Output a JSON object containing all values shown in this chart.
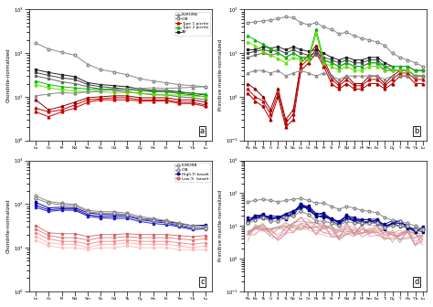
{
  "ree_labels": [
    "La",
    "Ce",
    "Pr",
    "Nd",
    "Sm",
    "Eu",
    "Gd",
    "Tb",
    "Dy",
    "Ho",
    "Er",
    "Tm",
    "Yb",
    "Lu"
  ],
  "trace_labels": [
    "Rb",
    "Ba",
    "Th",
    "U",
    "K",
    "Ta",
    "Nb",
    "La",
    "Ce",
    "Pb",
    "Pr",
    "Sr",
    "P",
    "Nd",
    "Zr",
    "Hf",
    "Sm",
    "Eu",
    "Ti",
    "Dy",
    "Y",
    "Ho",
    "Yb",
    "Lu"
  ],
  "panel_a": {
    "ylabel": "Chondrite-normalized",
    "ylim": [
      1,
      1000
    ],
    "series": {
      "N-MORB": {
        "color": "#888888",
        "marker": "^",
        "mfc": "white",
        "lw": 0.8,
        "values": [
          10.5,
          11.5,
          12.5,
          12.0,
          13.0,
          14.0,
          14.5,
          15.0,
          15.5,
          16.0,
          15.5,
          16.0,
          16.5,
          17.0
        ]
      },
      "OIB": {
        "color": "#888888",
        "marker": "o",
        "mfc": "white",
        "lw": 0.8,
        "values": [
          170,
          125,
          105,
          90,
          55,
          42,
          37,
          32,
          26,
          23,
          21,
          19,
          18,
          17
        ]
      },
      "Type1_1": {
        "color": "#8B0000",
        "marker": "^",
        "mfc": "#8B0000",
        "lw": 0.8,
        "values": [
          8.5,
          5.0,
          6.0,
          7.5,
          9.5,
          10.0,
          10.5,
          10.5,
          9.5,
          9.5,
          9.5,
          8.5,
          8.5,
          7.5
        ]
      },
      "Type1_2": {
        "color": "#CC0000",
        "marker": "^",
        "mfc": "#CC0000",
        "lw": 0.8,
        "values": [
          5.5,
          4.5,
          5.0,
          6.5,
          8.5,
          9.0,
          9.5,
          9.5,
          8.5,
          8.5,
          8.5,
          7.5,
          7.5,
          6.5
        ]
      },
      "Type1_3": {
        "color": "#CC0000",
        "marker": "^",
        "mfc": "#CC0000",
        "lw": 0.8,
        "values": [
          4.5,
          3.5,
          4.5,
          5.5,
          7.5,
          8.5,
          8.5,
          8.5,
          8.0,
          8.0,
          8.0,
          7.0,
          7.0,
          6.0
        ]
      },
      "Type2_1": {
        "color": "#00BB00",
        "marker": "^",
        "mfc": "#00BB00",
        "lw": 0.8,
        "values": [
          23,
          19,
          17,
          16,
          15,
          15,
          15,
          14.5,
          14,
          13.5,
          13,
          12.5,
          12,
          11.5
        ]
      },
      "Type2_2": {
        "color": "#66DD00",
        "marker": "^",
        "mfc": "#66DD00",
        "lw": 0.8,
        "values": [
          19,
          16,
          14.5,
          13.5,
          13,
          13,
          12.5,
          12.5,
          12,
          11.5,
          11,
          11,
          10.5,
          10
        ]
      },
      "AP_1": {
        "color": "#222222",
        "marker": "s",
        "mfc": "#222222",
        "lw": 0.8,
        "values": [
          42,
          36,
          32,
          29,
          21,
          19,
          18,
          17,
          15,
          14,
          14,
          13,
          12,
          11
        ]
      },
      "AP_2": {
        "color": "#444444",
        "marker": "s",
        "mfc": "#444444",
        "lw": 0.8,
        "values": [
          36,
          31,
          27,
          25,
          19,
          17,
          16,
          15,
          14,
          13,
          13,
          12,
          11,
          10
        ]
      },
      "AP_3": {
        "color": "#666666",
        "marker": "s",
        "mfc": "#666666",
        "lw": 0.8,
        "values": [
          30,
          26,
          22,
          20,
          17,
          15,
          14,
          13,
          12,
          11,
          11,
          10,
          9.5,
          8.5
        ]
      }
    },
    "legend_order": [
      "N-MORB",
      "OIB",
      "Type1_1",
      "Type2_1",
      "AP_1"
    ],
    "legend_labels": [
      "N-MORB",
      "OIB",
      "Type 1 picrite",
      "Type 2 picrite",
      "AP"
    ],
    "legend_colors": [
      "#888888",
      "#888888",
      "#CC0000",
      "#00BB00",
      "#222222"
    ],
    "legend_markers": [
      "^",
      "o",
      "^",
      "^",
      "s"
    ],
    "legend_mfcs": [
      "white",
      "white",
      "#CC0000",
      "#00BB00",
      "#222222"
    ]
  },
  "panel_b": {
    "ylabel": "Primitive mantle-normalized",
    "ylim": [
      0.1,
      100
    ],
    "series": {
      "OIB": {
        "color": "#888888",
        "marker": "o",
        "mfc": "white",
        "lw": 0.8,
        "values": [
          50,
          52,
          55,
          58,
          62,
          68,
          65,
          50,
          45,
          50,
          40,
          35,
          28,
          30,
          25,
          22,
          20,
          18,
          15,
          10,
          8,
          7,
          6,
          5
        ]
      },
      "N-MORB": {
        "color": "#888888",
        "marker": "^",
        "mfc": "white",
        "lw": 0.8,
        "values": [
          3.5,
          4,
          4,
          3.5,
          4,
          3,
          3.5,
          4,
          3.5,
          3,
          3.5,
          3,
          2.5,
          3,
          3,
          3,
          3,
          3,
          2.5,
          3,
          3,
          3,
          3,
          3
        ]
      },
      "Type1_1": {
        "color": "#8B0000",
        "marker": "^",
        "mfc": "#8B0000",
        "lw": 0.8,
        "values": [
          2.0,
          1.5,
          1.0,
          0.5,
          1.5,
          0.3,
          0.5,
          6,
          9,
          15,
          7,
          3,
          2,
          3,
          2,
          2,
          3,
          3,
          2,
          3,
          4,
          4,
          3,
          3
        ]
      },
      "Type1_2": {
        "color": "#CC0000",
        "marker": "^",
        "mfc": "#CC0000",
        "lw": 0.8,
        "values": [
          1.5,
          1.0,
          0.8,
          0.4,
          1.2,
          0.25,
          0.4,
          5,
          7.5,
          12,
          6,
          2.5,
          1.8,
          2.5,
          1.8,
          1.8,
          2.5,
          2.5,
          1.8,
          2.5,
          3.5,
          3.5,
          2.5,
          2.5
        ]
      },
      "Type1_3": {
        "color": "#AA0000",
        "marker": "^",
        "mfc": "#AA0000",
        "lw": 0.8,
        "values": [
          1.2,
          0.8,
          0.6,
          0.3,
          1.0,
          0.2,
          0.3,
          4,
          6,
          10,
          5,
          2,
          1.5,
          2,
          1.5,
          1.5,
          2,
          2,
          1.5,
          2,
          3,
          3,
          2,
          2
        ]
      },
      "Type2_1": {
        "color": "#00BB00",
        "marker": "^",
        "mfc": "#00BB00",
        "lw": 0.8,
        "values": [
          25,
          20,
          16,
          13,
          10,
          8,
          10,
          8,
          8,
          35,
          7,
          6,
          5,
          6,
          5,
          5,
          6,
          6,
          5,
          5,
          5,
          5,
          4,
          4
        ]
      },
      "Type2_2": {
        "color": "#66DD00",
        "marker": "^",
        "mfc": "#66DD00",
        "lw": 0.8,
        "values": [
          18,
          15,
          11,
          9,
          7.5,
          6,
          8,
          7,
          7,
          28,
          6,
          5,
          4,
          5,
          4,
          4,
          5,
          5,
          4,
          4,
          4,
          4,
          3,
          3
        ]
      },
      "AP_1": {
        "color": "#222222",
        "marker": "s",
        "mfc": "#222222",
        "lw": 0.8,
        "values": [
          12,
          12,
          14,
          13,
          14,
          12,
          14,
          12,
          11,
          12,
          10,
          8,
          7,
          8,
          7,
          7,
          8,
          8,
          6,
          5,
          5,
          5,
          4,
          4
        ]
      },
      "AP_2": {
        "color": "#444444",
        "marker": "s",
        "mfc": "#444444",
        "lw": 0.8,
        "values": [
          10,
          11,
          12,
          11,
          12,
          10,
          12,
          10,
          9,
          10,
          8,
          7,
          6,
          7,
          6,
          6,
          7,
          7,
          5,
          4,
          4,
          4,
          3,
          3
        ]
      },
      "AP_3": {
        "color": "#666666",
        "marker": "s",
        "mfc": "#666666",
        "lw": 0.8,
        "values": [
          8,
          9,
          10,
          9,
          10,
          8,
          10,
          8,
          8,
          9,
          7,
          6,
          5,
          6,
          5,
          5,
          6,
          6,
          4,
          4,
          4,
          4,
          3,
          3
        ]
      }
    }
  },
  "panel_c": {
    "ylabel": "Chondrite-normalized",
    "ylim": [
      1,
      1000
    ],
    "series": {
      "E-MORB": {
        "color": "#888888",
        "marker": "o",
        "mfc": "white",
        "lw": 0.8,
        "values": [
          155,
          115,
          105,
          98,
          72,
          67,
          67,
          62,
          52,
          47,
          42,
          37,
          32,
          31
        ]
      },
      "OIB": {
        "color": "#888888",
        "marker": "D",
        "mfc": "white",
        "lw": 0.8,
        "values": [
          135,
          105,
          97,
          92,
          67,
          62,
          62,
          57,
          47,
          42,
          38,
          34,
          29,
          28
        ]
      },
      "HighTi_1": {
        "color": "#00008B",
        "marker": "s",
        "mfc": "#00008B",
        "lw": 0.8,
        "values": [
          110,
          82,
          85,
          83,
          63,
          58,
          57,
          57,
          47,
          44,
          40,
          36,
          32,
          33
        ]
      },
      "HighTi_2": {
        "color": "#0000BB",
        "marker": "s",
        "mfc": "#0000BB",
        "lw": 0.8,
        "values": [
          95,
          74,
          78,
          77,
          57,
          52,
          52,
          52,
          44,
          40,
          37,
          32,
          28,
          29
        ]
      },
      "HighTi_3": {
        "color": "#2222CC",
        "marker": "s",
        "mfc": "#2222CC",
        "lw": 0.8,
        "values": [
          85,
          68,
          73,
          72,
          53,
          48,
          47,
          47,
          40,
          36,
          34,
          30,
          26,
          27
        ]
      },
      "LowTi_1": {
        "color": "#CC6666",
        "marker": "o",
        "mfc": "#CC6666",
        "lw": 0.6,
        "values": [
          32,
          22,
          21,
          21,
          18,
          20,
          20,
          21,
          20,
          20,
          20,
          19,
          18,
          19
        ]
      },
      "LowTi_2": {
        "color": "#DD7777",
        "marker": "o",
        "mfc": "#DD7777",
        "lw": 0.6,
        "values": [
          27,
          19,
          17,
          17,
          15,
          17,
          17,
          18,
          17,
          17,
          17,
          16,
          15,
          16
        ]
      },
      "LowTi_3": {
        "color": "#EE8888",
        "marker": "o",
        "mfc": "#EE8888",
        "lw": 0.6,
        "values": [
          22,
          16,
          14,
          14,
          12,
          14,
          14,
          15,
          14,
          14,
          14,
          13,
          12,
          13
        ]
      },
      "LowTi_4": {
        "color": "#FFAAAA",
        "marker": "o",
        "mfc": "#FFAAAA",
        "lw": 0.6,
        "values": [
          18,
          13,
          12,
          12,
          10,
          12,
          12,
          13,
          12,
          12,
          12,
          11,
          10,
          11
        ]
      },
      "LowTi_5": {
        "color": "#FFBBBB",
        "marker": "o",
        "mfc": "#FFBBBB",
        "lw": 0.6,
        "values": [
          15,
          11,
          10,
          10,
          9,
          10,
          10,
          11,
          10,
          10,
          10,
          9,
          9,
          9
        ]
      }
    },
    "legend_labels": [
      "E-MORB",
      "OIB",
      "High-Ti basalt",
      "Low-Ti basalt"
    ],
    "legend_colors": [
      "#888888",
      "#888888",
      "#00008B",
      "#CC6666"
    ],
    "legend_markers": [
      "o",
      "D",
      "s",
      "o"
    ],
    "legend_mfcs": [
      "white",
      "white",
      "#00008B",
      "#CC6666"
    ]
  },
  "panel_d": {
    "ylabel": "Primitive mantle-normalized",
    "ylim": [
      0.1,
      1000
    ],
    "oib": [
      55,
      60,
      65,
      60,
      55,
      60,
      65,
      70,
      60,
      50,
      50,
      40,
      32,
      40,
      35,
      30,
      28,
      25,
      18,
      15,
      14,
      12,
      10,
      8
    ],
    "emorb": [
      12,
      15,
      18,
      14,
      14,
      18,
      20,
      28,
      22,
      14,
      14,
      12,
      10,
      14,
      12,
      12,
      12,
      12,
      9,
      10,
      10,
      10,
      8,
      8
    ],
    "hiti_base": [
      15,
      18,
      20,
      18,
      18,
      20,
      25,
      40,
      35,
      20,
      22,
      15,
      12,
      18,
      15,
      14,
      14,
      14,
      10,
      12,
      12,
      10,
      8,
      8
    ],
    "loti_base": [
      5,
      8,
      8,
      6,
      6,
      8,
      10,
      12,
      10,
      8,
      8,
      7,
      5,
      8,
      7,
      7,
      7,
      7,
      5,
      5,
      5,
      5,
      4,
      4
    ],
    "hiti_color": "#00008B",
    "loti_color": "#CC6666",
    "oib_color": "#888888",
    "emorb_color": "#888888"
  }
}
